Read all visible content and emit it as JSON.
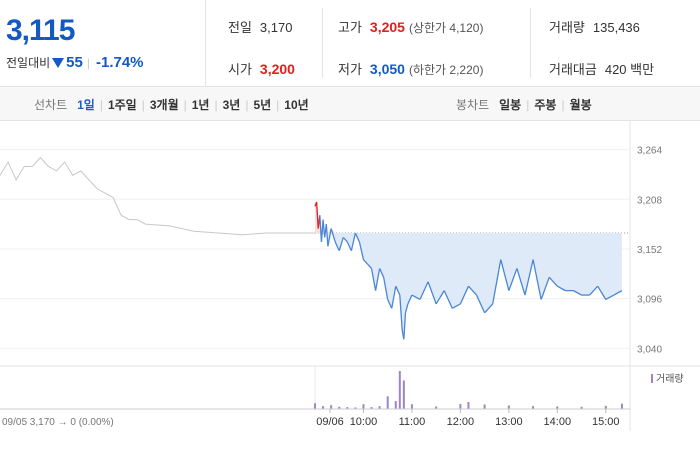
{
  "quote": {
    "price": "3,115",
    "change_label": "전일대비",
    "change": "55",
    "change_pct": "-1.74%",
    "prev_close_label": "전일",
    "prev_close": "3,170",
    "high_label": "고가",
    "high": "3,205",
    "upper_limit": "(상한가 4,120)",
    "volume_label": "거래량",
    "volume": "135,436",
    "open_label": "시가",
    "open": "3,200",
    "low_label": "저가",
    "low": "3,050",
    "lower_limit": "(하한가 2,220)",
    "turnover_label": "거래대금",
    "turnover": "420 백만"
  },
  "tabs": {
    "line_label": "선차트",
    "line_tabs": [
      "1일",
      "1주일",
      "3개월",
      "1년",
      "3년",
      "5년",
      "10년"
    ],
    "candle_label": "봉차트",
    "candle_tabs": [
      "일봉",
      "주봉",
      "월봉"
    ]
  },
  "colors": {
    "up": "#e0201d",
    "down": "#1259c3",
    "line": "#4a86d4",
    "fill": "#dfeaf8",
    "prev": "#c8c8c8",
    "volume": "#9c86c9"
  },
  "chart_data": {
    "type": "line",
    "ylim": [
      3020,
      3285
    ],
    "yticks": [
      "3,264",
      "3,208",
      "3,152",
      "3,096",
      "3,040"
    ],
    "ytick_values": [
      3264,
      3208,
      3152,
      3096,
      3040
    ],
    "xticks": [
      "09/05",
      "09/06",
      "10:00",
      "11:00",
      "12:00",
      "13:00",
      "14:00",
      "15:00"
    ],
    "prev_day_note": "09/05  3,170 → 0 (0.00%)",
    "prev_close": 3170,
    "volume_legend": "거래량",
    "series": [
      {
        "x": [
          "09/05 09:00",
          "09/05 09:10",
          "09/05 09:20",
          "09/05 09:30",
          "09/05 09:40",
          "09/05 09:50",
          "09/05 10:00",
          "09/05 10:10",
          "09/05 10:20",
          "09/05 10:30",
          "09/05 10:40",
          "09/05 10:50",
          "09/05 11:00",
          "09/05 11:10",
          "09/05 11:20",
          "09/05 11:30",
          "09/05 11:40",
          "09/05 11:50",
          "09/05 12:00",
          "09/05 12:30",
          "09/05 13:00",
          "09/05 13:30",
          "09/05 14:00",
          "09/05 14:30",
          "09/05 15:00",
          "09/05 15:30"
        ],
        "y": [
          3235,
          3250,
          3230,
          3245,
          3245,
          3255,
          3245,
          3240,
          3250,
          3235,
          3240,
          3230,
          3220,
          3215,
          3210,
          3190,
          3185,
          3185,
          3180,
          3178,
          3172,
          3170,
          3168,
          3170,
          3170,
          3170
        ]
      },
      {
        "x": [
          "09:00",
          "09:02",
          "09:04",
          "09:06",
          "09:08",
          "09:10",
          "09:12",
          "09:14",
          "09:16",
          "09:20",
          "09:25",
          "09:30",
          "09:35",
          "09:40",
          "09:45",
          "09:50",
          "09:55",
          "10:00",
          "10:05",
          "10:10",
          "10:15",
          "10:20",
          "10:25",
          "10:30",
          "10:35",
          "10:40",
          "10:45",
          "10:48",
          "10:50",
          "10:52",
          "10:55",
          "11:00",
          "11:10",
          "11:20",
          "11:30",
          "11:40",
          "11:50",
          "12:00",
          "12:10",
          "12:20",
          "12:30",
          "12:40",
          "12:50",
          "13:00",
          "13:10",
          "13:20",
          "13:30",
          "13:40",
          "13:50",
          "14:00",
          "14:10",
          "14:20",
          "14:30",
          "14:40",
          "14:50",
          "15:00",
          "15:10",
          "15:20"
        ],
        "y": [
          3200,
          3205,
          3175,
          3190,
          3160,
          3185,
          3165,
          3180,
          3155,
          3175,
          3160,
          3150,
          3165,
          3160,
          3150,
          3170,
          3160,
          3140,
          3135,
          3130,
          3105,
          3130,
          3120,
          3095,
          3085,
          3110,
          3100,
          3060,
          3050,
          3080,
          3090,
          3100,
          3095,
          3115,
          3090,
          3105,
          3085,
          3090,
          3110,
          3100,
          3080,
          3090,
          3140,
          3105,
          3130,
          3100,
          3140,
          3095,
          3120,
          3110,
          3105,
          3105,
          3100,
          3100,
          3110,
          3095,
          3100,
          3105
        ]
      }
    ],
    "volume": {
      "x": [
        "09:00",
        "09:10",
        "09:20",
        "09:30",
        "09:40",
        "09:50",
        "10:00",
        "10:10",
        "10:20",
        "10:30",
        "10:40",
        "10:45",
        "10:50",
        "11:00",
        "11:30",
        "12:00",
        "12:10",
        "12:30",
        "13:00",
        "13:30",
        "14:00",
        "14:30",
        "15:00",
        "15:20"
      ],
      "y": [
        1800,
        900,
        1200,
        700,
        600,
        500,
        1500,
        600,
        900,
        4000,
        2500,
        12000,
        9000,
        1500,
        800,
        1600,
        2200,
        1400,
        1100,
        900,
        800,
        700,
        1000,
        1700
      ]
    }
  }
}
